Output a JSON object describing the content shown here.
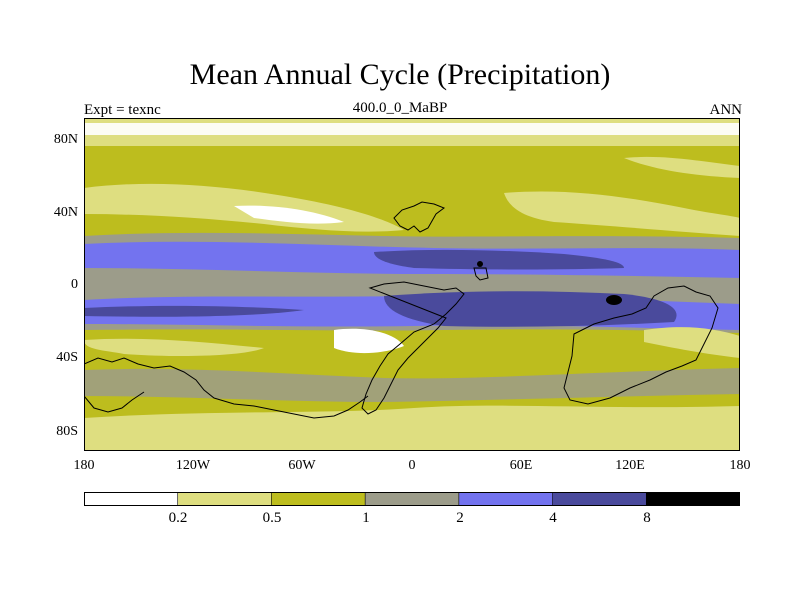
{
  "title": "Mean Annual Cycle (Precipitation)",
  "subtitle_left": "Expt = texnc",
  "subtitle_center": "400.0_0_MaBP",
  "subtitle_right": "ANN",
  "y_ticks": [
    "80N",
    "40N",
    "0",
    "40S",
    "80S"
  ],
  "x_ticks": [
    "180",
    "120W",
    "60W",
    "0",
    "60E",
    "120E",
    "180"
  ],
  "colorbar": {
    "labels": [
      "0.2",
      "0.5",
      "1",
      "2",
      "4",
      "8"
    ],
    "colors": [
      "#ffffff",
      "#dede80",
      "#bdbd1e",
      "#9c9c8a",
      "#7373ef",
      "#4a4a9c",
      "#000000"
    ]
  }
}
